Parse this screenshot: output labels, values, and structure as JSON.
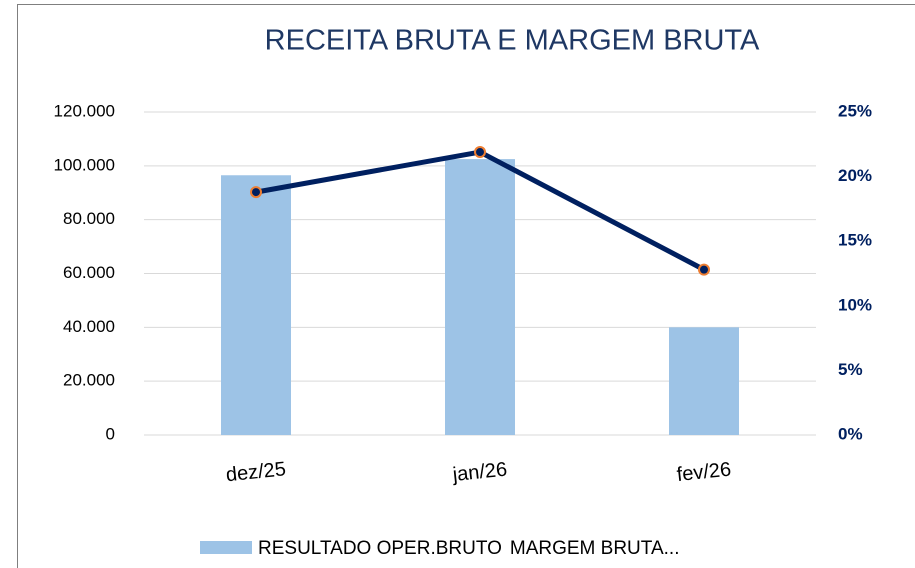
{
  "chart_data": {
    "type": "bar_line",
    "title": "RECEITA BRUTA E MARGEM BRUTA",
    "categories": [
      "dez/25",
      "jan/26",
      "fev/26"
    ],
    "series": [
      {
        "name": "RESULTADO OPER.BRUTO",
        "color": "#9dc3e6",
        "type": "bar",
        "values": [
          96500,
          102500,
          40000
        ]
      },
      {
        "name": "MARGEM BRUTA...",
        "color": "#002060",
        "type": "line",
        "axis": "y2",
        "values": [
          18.8,
          21.9,
          12.8
        ]
      }
    ],
    "ylim": [
      0,
      120000
    ],
    "yticks": [
      0,
      {
        "value": 20000,
        "label": "20.000"
      },
      {
        "value": 40000,
        "label": "40.000"
      },
      {
        "value": 60000,
        "label": "60.000"
      },
      {
        "value": 80000,
        "label": "80.000"
      },
      {
        "value": 100000,
        "label": "100.000"
      },
      {
        "value": 120000,
        "label": "120.000"
      }
    ],
    "y2lim": [
      0,
      25
    ],
    "y2ticks": [
      {
        "value": 0,
        "label": "0%"
      },
      {
        "value": 5,
        "label": "5%"
      },
      {
        "value": 10,
        "label": "10%"
      },
      {
        "value": 15,
        "label": "15%"
      },
      {
        "value": 20,
        "label": "20%"
      },
      {
        "value": 25,
        "label": "25%"
      }
    ],
    "grid": true,
    "legend": "bottom",
    "marker_edge_color": "#ed7d31"
  }
}
